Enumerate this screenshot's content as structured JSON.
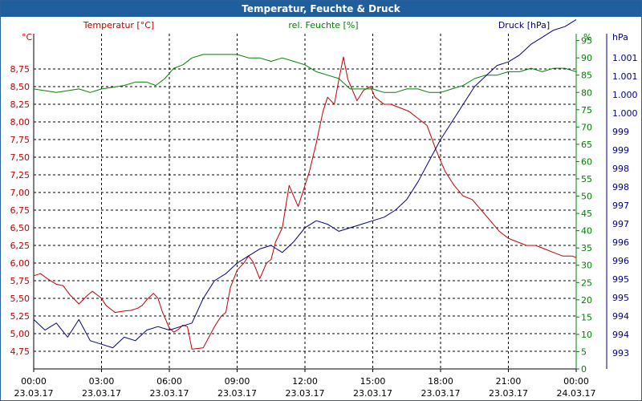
{
  "window": {
    "title": "Temperatur, Feuchte & Druck"
  },
  "chart_data": {
    "type": "line",
    "grid": true,
    "legend": "top",
    "x_ticks": [
      {
        "time": "00:00",
        "date": "23.03.17"
      },
      {
        "time": "03:00",
        "date": "23.03.17"
      },
      {
        "time": "06:00",
        "date": "23.03.17"
      },
      {
        "time": "09:00",
        "date": "23.03.17"
      },
      {
        "time": "12:00",
        "date": "23.03.17"
      },
      {
        "time": "15:00",
        "date": "23.03.17"
      },
      {
        "time": "18:00",
        "date": "23.03.17"
      },
      {
        "time": "21:00",
        "date": "23.03.17"
      },
      {
        "time": "00:00",
        "date": "24.03.17"
      }
    ],
    "axes": {
      "temperature": {
        "title": "Temperatur [°C]",
        "unit": "°C",
        "color": "#c00000",
        "ylim": [
          4.5,
          9.25
        ],
        "ticks": [
          "4,75",
          "5,00",
          "5,25",
          "5,50",
          "5,75",
          "6,00",
          "6,25",
          "6,50",
          "6,75",
          "7,00",
          "7,25",
          "7,50",
          "7,75",
          "8,00",
          "8,25",
          "8,50",
          "8,75"
        ]
      },
      "humidity": {
        "title": "rel. Feuchte [%]",
        "unit": "%",
        "color": "#008000",
        "ylim": [
          0,
          97
        ],
        "ticks": [
          "0",
          "5",
          "10",
          "15",
          "20",
          "25",
          "30",
          "35",
          "40",
          "45",
          "50",
          "55",
          "60",
          "65",
          "70",
          "75",
          "80",
          "85",
          "90",
          "95"
        ]
      },
      "pressure": {
        "title": "Druck [hPa]",
        "unit": "hPa",
        "color": "#000080",
        "ylim": [
          992.3,
          1001.8
        ],
        "ticks": [
          "993",
          "994",
          "994",
          "995",
          "995",
          "996",
          "996",
          "997",
          "997",
          "998",
          "998",
          "999",
          "999",
          "1.000",
          "1.000",
          "1.001",
          "1.001"
        ]
      }
    },
    "series": [
      {
        "name": "Temperatur [°C]",
        "axis": "temperature",
        "color": "#c00000",
        "x": [
          0,
          0.3,
          0.6,
          1,
          1.3,
          1.6,
          2,
          2.4,
          2.6,
          3,
          3.2,
          3.6,
          4,
          4.3,
          4.6,
          4.8,
          5,
          5.3,
          5.5,
          5.7,
          6,
          6.2,
          6.4,
          6.6,
          6.8,
          7,
          7.5,
          8,
          8.3,
          8.5,
          8.7,
          9,
          9.3,
          9.5,
          9.7,
          10,
          10.3,
          10.5,
          10.7,
          11,
          11.3,
          11.5,
          11.7,
          12,
          12.2,
          12.5,
          12.8,
          13,
          13.3,
          13.5,
          13.7,
          13.9,
          14.1,
          14.3,
          14.6,
          14.9,
          15.1,
          15.5,
          15.8,
          16.2,
          16.6,
          17,
          17.4,
          17.8,
          18.2,
          18.6,
          19,
          19.4,
          19.8,
          20.2,
          20.6,
          21,
          21.4,
          21.8,
          22.2,
          22.6,
          23,
          23.4,
          23.8,
          24
        ],
        "values": [
          5.82,
          5.85,
          5.78,
          5.7,
          5.68,
          5.55,
          5.42,
          5.55,
          5.6,
          5.5,
          5.4,
          5.3,
          5.32,
          5.33,
          5.36,
          5.4,
          5.48,
          5.57,
          5.5,
          5.3,
          5.08,
          5.02,
          5.06,
          5.12,
          5.1,
          4.78,
          4.8,
          5.1,
          5.25,
          5.3,
          5.65,
          5.9,
          6.0,
          6.1,
          6.02,
          5.78,
          6.0,
          6.05,
          6.3,
          6.5,
          7.1,
          6.95,
          6.8,
          7.1,
          7.3,
          7.7,
          8.15,
          8.35,
          8.25,
          8.6,
          8.92,
          8.6,
          8.45,
          8.3,
          8.45,
          8.5,
          8.35,
          8.25,
          8.25,
          8.2,
          8.15,
          8.05,
          7.95,
          7.6,
          7.3,
          7.1,
          6.95,
          6.9,
          6.75,
          6.6,
          6.45,
          6.35,
          6.3,
          6.25,
          6.25,
          6.2,
          6.15,
          6.1,
          6.1,
          6.08
        ]
      },
      {
        "name": "rel. Feuchte [%]",
        "axis": "humidity",
        "color": "#008000",
        "x": [
          0,
          1,
          2,
          2.5,
          3,
          4,
          4.5,
          5,
          5.4,
          5.8,
          6.2,
          6.6,
          7,
          7.5,
          8,
          8.5,
          9,
          9.5,
          10,
          10.5,
          11,
          11.5,
          12,
          12.5,
          13,
          13.5,
          14,
          14.5,
          15,
          15.5,
          16,
          16.5,
          17,
          17.5,
          18,
          18.5,
          19,
          19.5,
          20,
          20.5,
          21,
          21.5,
          22,
          22.5,
          23,
          23.5,
          24
        ],
        "values": [
          81,
          80,
          81,
          80,
          81,
          82,
          83,
          83,
          82,
          84,
          87,
          88,
          90,
          91,
          91,
          91,
          91,
          90,
          90,
          89,
          90,
          89,
          88,
          86,
          85,
          84,
          81,
          81,
          81,
          80,
          80,
          81,
          81,
          80,
          80,
          81,
          82,
          84,
          85,
          85,
          86,
          86,
          87,
          86,
          87,
          87,
          86
        ]
      },
      {
        "name": "Druck [hPa]",
        "axis": "pressure",
        "color": "#000080",
        "x": [
          0,
          0.5,
          1,
          1.5,
          2,
          2.5,
          3,
          3.5,
          4,
          4.5,
          5,
          5.5,
          6,
          6.5,
          7,
          7.5,
          8,
          8.5,
          9,
          9.5,
          10,
          10.5,
          11,
          11.5,
          12,
          12.5,
          13,
          13.5,
          14,
          14.5,
          15,
          15.5,
          16,
          16.5,
          17,
          17.5,
          18,
          18.5,
          19,
          19.5,
          20,
          20.5,
          21,
          21.5,
          22,
          22.5,
          23,
          23.5,
          24
        ],
        "values": [
          993.7,
          993.4,
          993.6,
          993.2,
          993.7,
          993.1,
          993.0,
          992.9,
          993.2,
          993.1,
          993.4,
          993.5,
          993.4,
          993.5,
          993.6,
          994.3,
          994.8,
          995.0,
          995.3,
          995.5,
          995.7,
          995.8,
          995.6,
          995.9,
          996.3,
          996.5,
          996.4,
          996.2,
          996.3,
          996.4,
          996.5,
          996.6,
          996.8,
          997.1,
          997.6,
          998.2,
          998.8,
          999.3,
          999.8,
          1000.3,
          1000.6,
          1000.9,
          1001.0,
          1001.2,
          1001.5,
          1001.7,
          1001.9,
          1002.0,
          1002.2
        ]
      }
    ]
  }
}
